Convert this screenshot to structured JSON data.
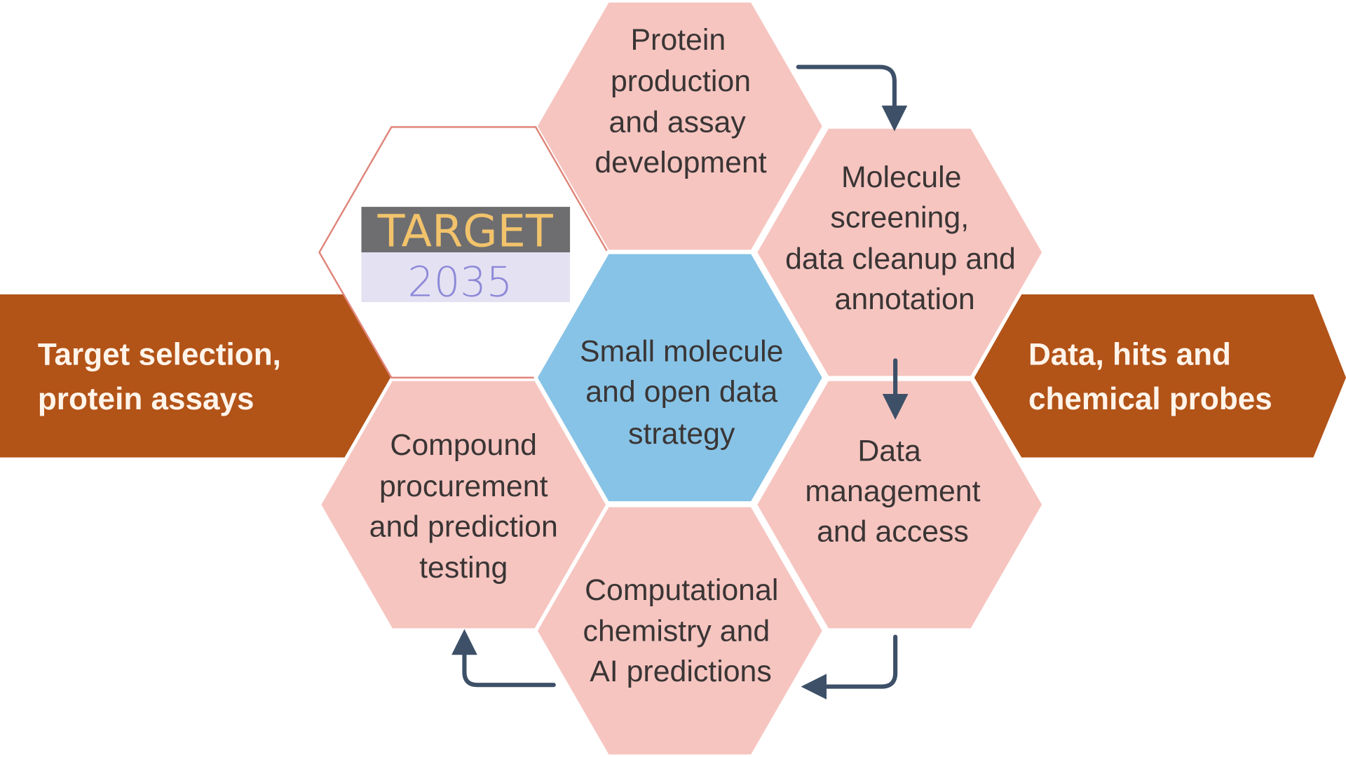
{
  "colors": {
    "hex_fill": "#f6c5c0",
    "center_fill": "#87c3e6",
    "band": "#b25318",
    "arrow": "#3d5068",
    "logo_dark": "#6e6e70",
    "logo_gold": "#f2c36b",
    "logo_light": "#e4e1f2",
    "logo_year": "#8c88d8"
  },
  "left_band": {
    "lines": [
      "Target selection,",
      "protein assays"
    ]
  },
  "right_band": {
    "lines": [
      "Data, hits and",
      "chemical probes"
    ]
  },
  "logo": {
    "word": "TARGET",
    "year": "2035"
  },
  "center": {
    "lines": [
      "Small molecule",
      "and open data",
      "strategy"
    ]
  },
  "hexes": {
    "protein": [
      "Protein",
      "production",
      "and assay",
      "development"
    ],
    "screening": [
      "Molecule",
      "screening,",
      "data cleanup and",
      "annotation"
    ],
    "management": [
      "Data",
      "management",
      "and access"
    ],
    "computational": [
      "Computational",
      "chemistry and",
      "AI predictions"
    ],
    "compound": [
      "Compound",
      "procurement",
      "and prediction",
      "testing"
    ]
  }
}
